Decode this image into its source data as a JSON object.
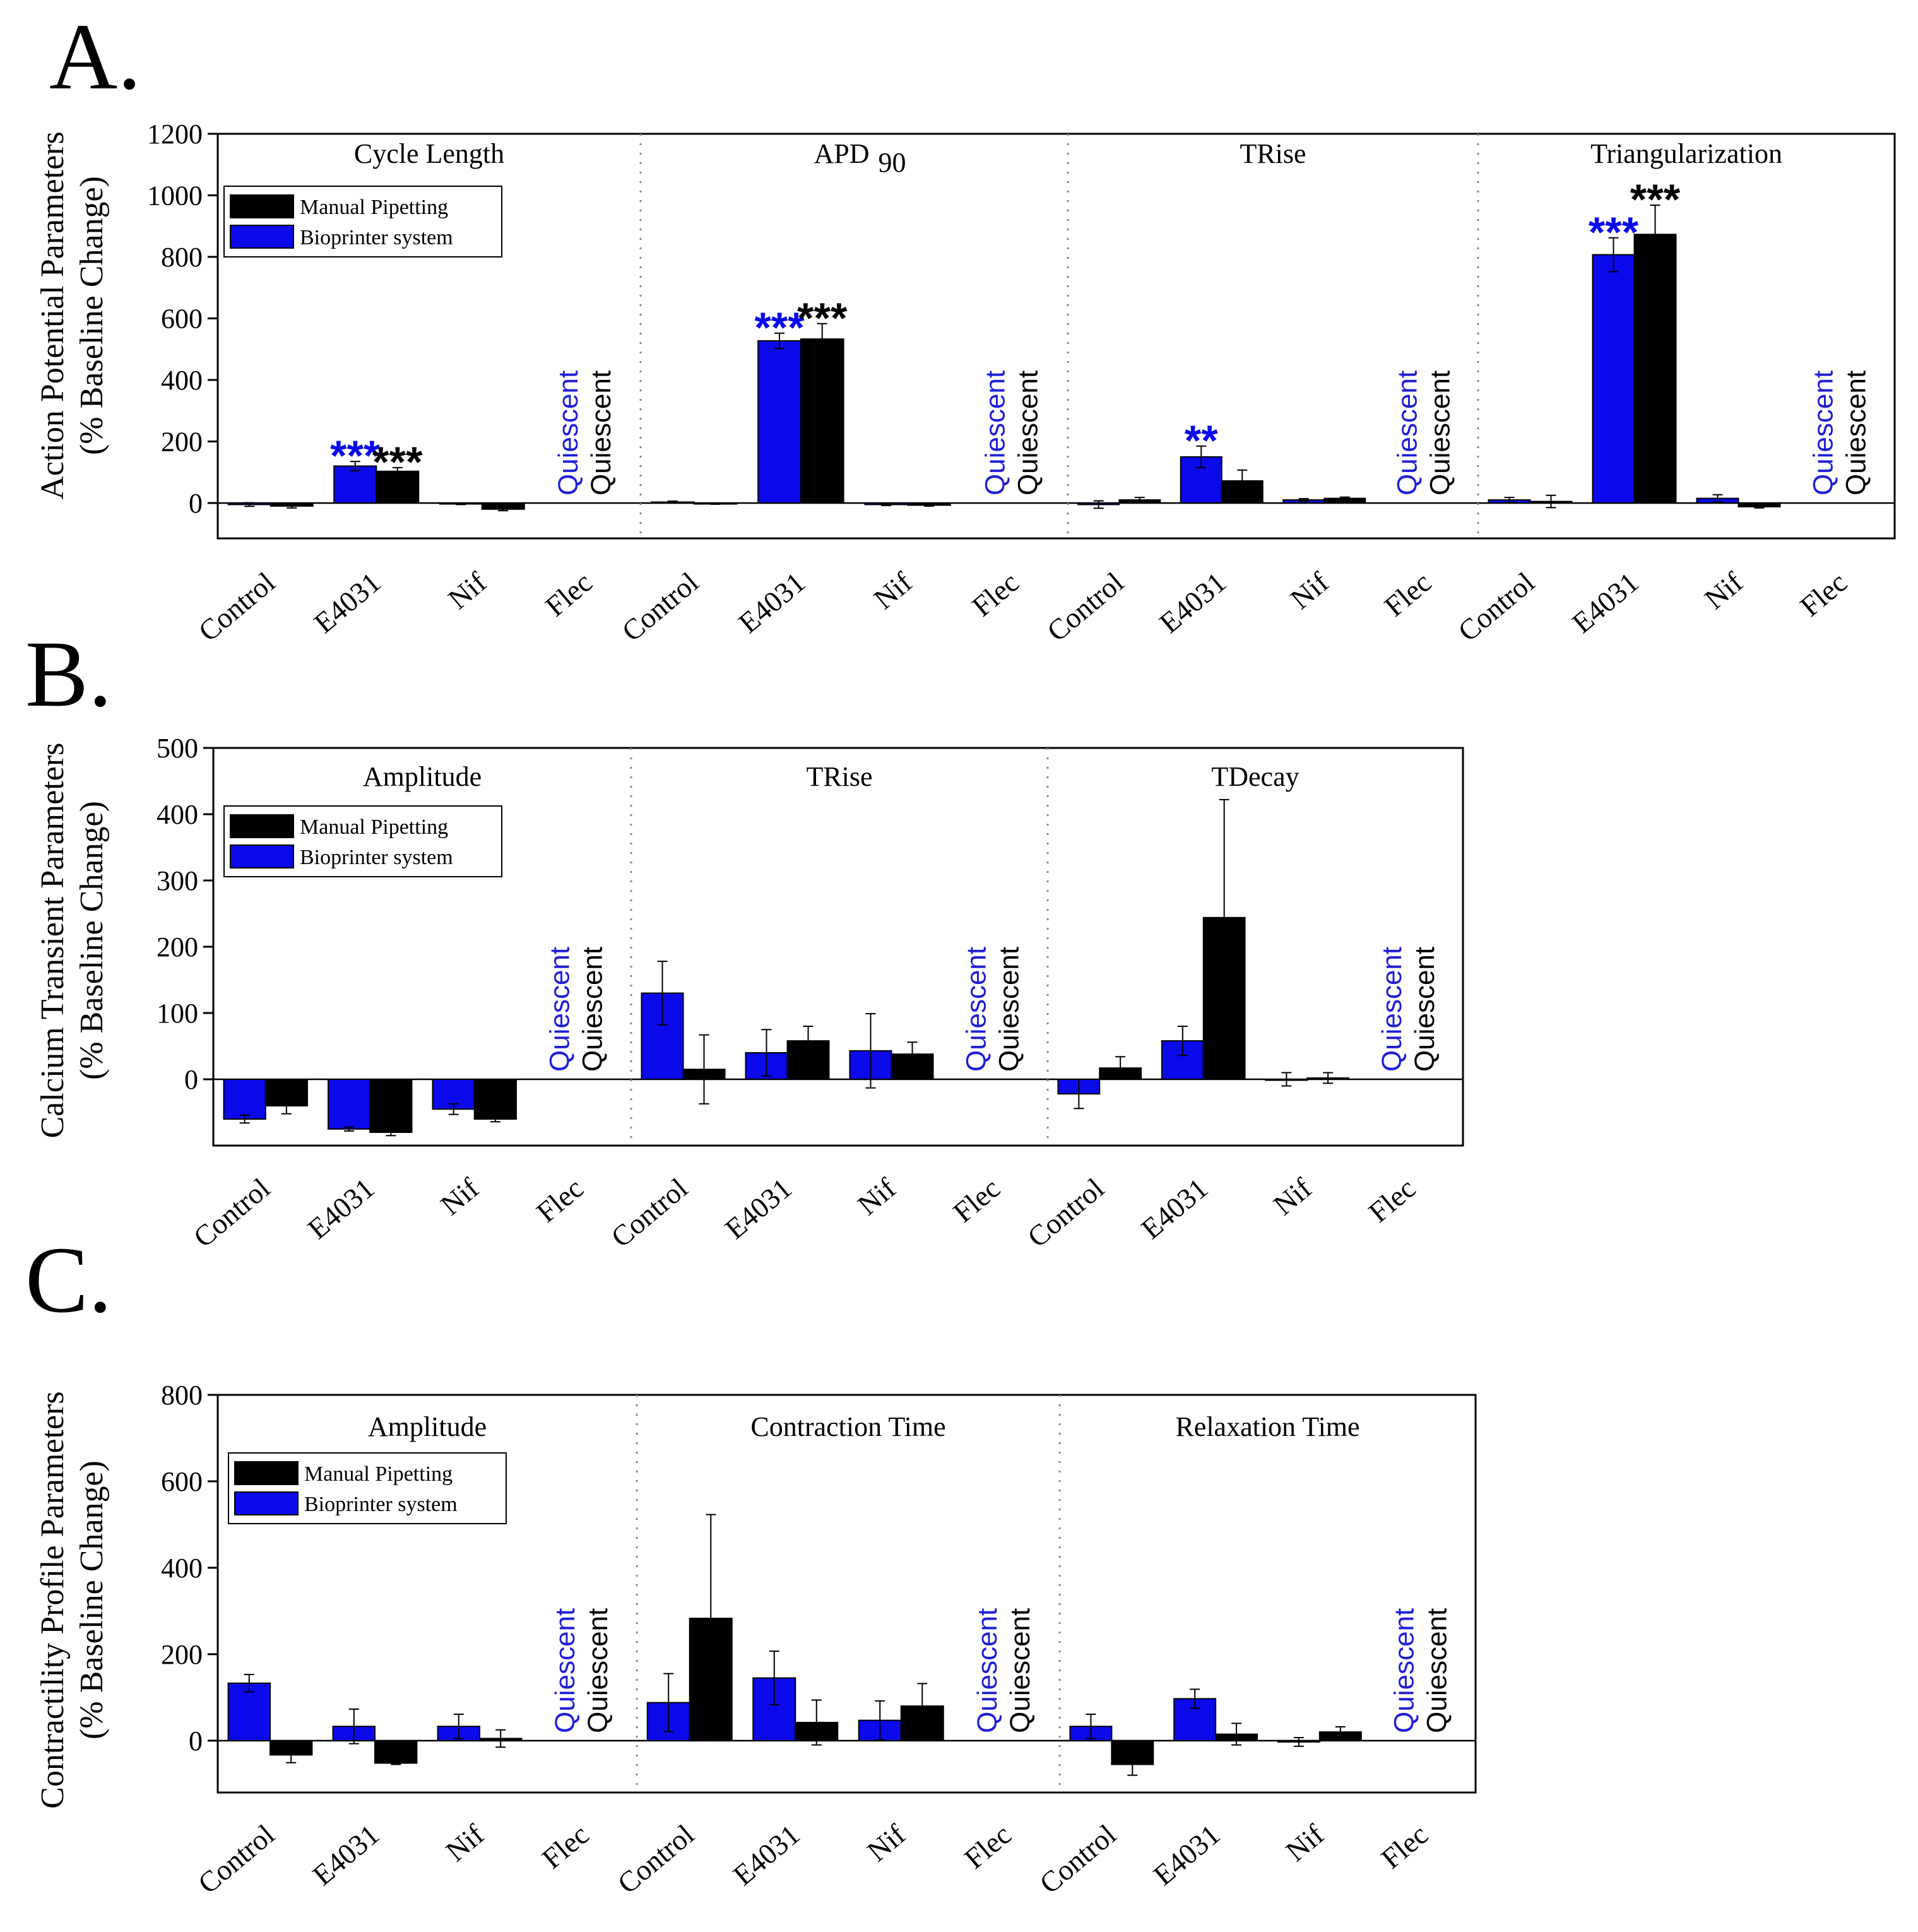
{
  "colors": {
    "bioprinter": "#0a0aeb",
    "manual": "#000000",
    "quiescent_bioprinter": "#1f1fd6",
    "quiescent_manual": "#000000"
  },
  "legend": {
    "manual_label": "Manual Pipetting",
    "bioprinter_label": "Bioprinter system"
  },
  "quiescent_label": "Quiescent",
  "chart_data": [
    {
      "type": "bar",
      "panel": "A.",
      "ylabel_line1": "Action Potential Parameters",
      "ylabel_line2": "(% Baseline Change)",
      "ylim": [
        -115,
        1200
      ],
      "yticks": [
        0,
        200,
        400,
        600,
        800,
        1000,
        1200
      ],
      "categories": [
        "Control",
        "E4031",
        "Nif",
        "Flec"
      ],
      "legend_placement": "upper-left of first section",
      "sections": [
        {
          "title": "Cycle Length",
          "subscript": "",
          "bioprinter": [
            -5,
            120,
            -3,
            null
          ],
          "bioprinter_err": [
            6,
            15,
            2,
            null
          ],
          "manual": [
            -10,
            103,
            -20,
            null
          ],
          "manual_err": [
            6,
            12,
            5,
            null
          ],
          "stars_bioprinter": [
            "",
            "***",
            "",
            ""
          ],
          "stars_manual": [
            "",
            "***",
            "",
            ""
          ],
          "quiescent_category": 3
        },
        {
          "title": "APD",
          "subscript": "90",
          "bioprinter": [
            3,
            527,
            -5,
            null
          ],
          "bioprinter_err": [
            3,
            25,
            3,
            null
          ],
          "manual": [
            -2,
            533,
            -7,
            null
          ],
          "manual_err": [
            2,
            50,
            3,
            null
          ],
          "stars_bioprinter": [
            "",
            "***",
            "",
            ""
          ],
          "stars_manual": [
            "",
            "***",
            "",
            ""
          ],
          "quiescent_category": 3
        },
        {
          "title": "TRise",
          "subscript": "",
          "bioprinter": [
            -5,
            150,
            10,
            null
          ],
          "bioprinter_err": [
            12,
            35,
            4,
            null
          ],
          "manual": [
            10,
            72,
            15,
            null
          ],
          "manual_err": [
            8,
            35,
            4,
            null
          ],
          "stars_bioprinter": [
            "",
            "**",
            "",
            ""
          ],
          "stars_manual": [
            "",
            "",
            "",
            ""
          ],
          "quiescent_category": 3
        },
        {
          "title": "Triangularization",
          "subscript": "",
          "bioprinter": [
            10,
            807,
            15,
            null
          ],
          "bioprinter_err": [
            8,
            55,
            12,
            null
          ],
          "manual": [
            5,
            873,
            -12,
            null
          ],
          "manual_err": [
            20,
            95,
            4,
            null
          ],
          "stars_bioprinter": [
            "",
            "***",
            "",
            ""
          ],
          "stars_manual": [
            "",
            "***",
            "",
            ""
          ],
          "quiescent_category": 3
        }
      ]
    },
    {
      "type": "bar",
      "panel": "B.",
      "ylabel_line1": "Calcium Transient Parameters",
      "ylabel_line2": "(% Baseline Change)",
      "ylim": [
        -100,
        500
      ],
      "yticks": [
        0,
        100,
        200,
        300,
        400,
        500
      ],
      "categories": [
        "Control",
        "E4031",
        "Nif",
        "Flec"
      ],
      "legend_placement": "upper-left of first section",
      "sections": [
        {
          "title": "Amplitude",
          "subscript": "",
          "bioprinter": [
            -60,
            -75,
            -45,
            null
          ],
          "bioprinter_err": [
            6,
            3,
            8,
            null
          ],
          "manual": [
            -40,
            -80,
            -60,
            null
          ],
          "manual_err": [
            12,
            5,
            4,
            null
          ],
          "stars_bioprinter": [
            "",
            "",
            "",
            ""
          ],
          "stars_manual": [
            "",
            "",
            "",
            ""
          ],
          "quiescent_category": 3
        },
        {
          "title": "TRise",
          "subscript": "",
          "bioprinter": [
            130,
            40,
            43,
            null
          ],
          "bioprinter_err": [
            48,
            35,
            56,
            null
          ],
          "manual": [
            15,
            58,
            38,
            null
          ],
          "manual_err": [
            52,
            22,
            18,
            null
          ],
          "stars_bioprinter": [
            "",
            "",
            "",
            ""
          ],
          "stars_manual": [
            "",
            "",
            "",
            ""
          ],
          "quiescent_category": 3
        },
        {
          "title": "TDecay",
          "subscript": "",
          "bioprinter": [
            -22,
            58,
            0,
            null
          ],
          "bioprinter_err": [
            22,
            22,
            10,
            null
          ],
          "manual": [
            17,
            244,
            2,
            null
          ],
          "manual_err": [
            17,
            178,
            8,
            null
          ],
          "stars_bioprinter": [
            "",
            "",
            "",
            ""
          ],
          "stars_manual": [
            "",
            "",
            "",
            ""
          ],
          "quiescent_category": 3
        }
      ]
    },
    {
      "type": "bar",
      "panel": "C.",
      "ylabel_line1": "Contractility Profile Parameters",
      "ylabel_line2": "(% Baseline Change)",
      "ylim": [
        -120,
        800
      ],
      "yticks": [
        0,
        200,
        400,
        600,
        800
      ],
      "categories": [
        "Control",
        "E4031",
        "Nif",
        "Flec"
      ],
      "legend_placement": "upper-left of first section",
      "sections": [
        {
          "title": "Amplitude",
          "subscript": "",
          "bioprinter": [
            133,
            33,
            33,
            null
          ],
          "bioprinter_err": [
            20,
            40,
            28,
            null
          ],
          "manual": [
            -33,
            -52,
            5,
            null
          ],
          "manual_err": [
            18,
            3,
            20,
            null
          ],
          "stars_bioprinter": [
            "",
            "",
            "",
            ""
          ],
          "stars_manual": [
            "",
            "",
            "",
            ""
          ],
          "quiescent_category": 3
        },
        {
          "title": "Contraction Time",
          "subscript": "",
          "bioprinter": [
            88,
            145,
            47,
            null
          ],
          "bioprinter_err": [
            67,
            62,
            45,
            null
          ],
          "manual": [
            283,
            42,
            80,
            null
          ],
          "manual_err": [
            240,
            52,
            52,
            null
          ],
          "stars_bioprinter": [
            "",
            "",
            "",
            ""
          ],
          "stars_manual": [
            "",
            "",
            "",
            ""
          ],
          "quiescent_category": 3
        },
        {
          "title": "Relaxation Time",
          "subscript": "",
          "bioprinter": [
            33,
            97,
            -3,
            null
          ],
          "bioprinter_err": [
            28,
            22,
            10,
            null
          ],
          "manual": [
            -55,
            15,
            20,
            null
          ],
          "manual_err": [
            25,
            25,
            12,
            null
          ],
          "stars_bioprinter": [
            "",
            "",
            "",
            ""
          ],
          "stars_manual": [
            "",
            "",
            "",
            ""
          ],
          "quiescent_category": 3
        }
      ]
    }
  ]
}
